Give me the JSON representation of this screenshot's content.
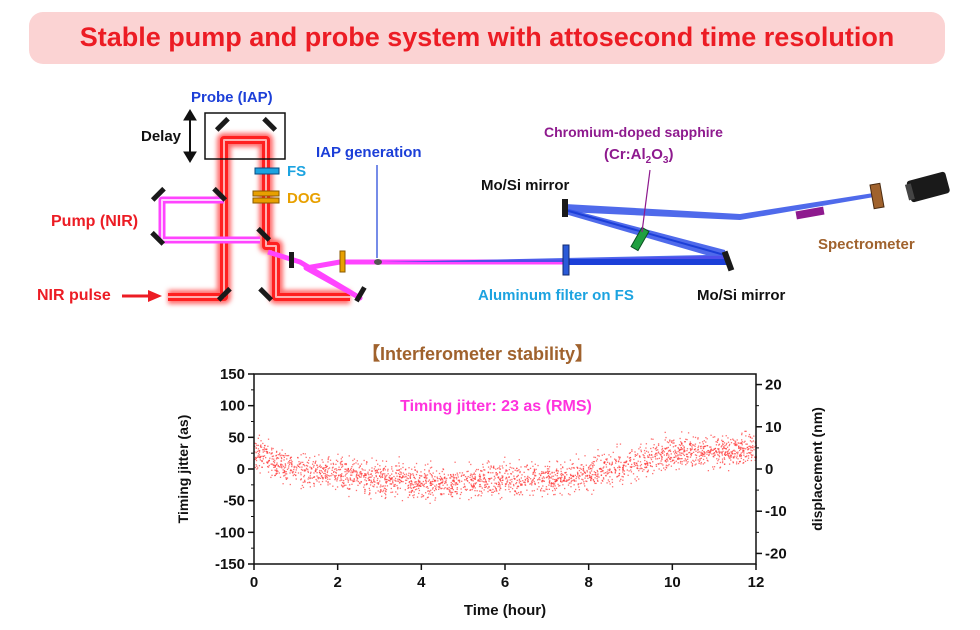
{
  "title": "Stable pump and probe system with attosecond time resolution",
  "diagram": {
    "probe_label": "Probe (IAP)",
    "delay_label": "Delay",
    "fs_label": "FS",
    "dog_label": "DOG",
    "pump_label": "Pump (NIR)",
    "nir_pulse_label": "NIR pulse",
    "iap_generation_label": "IAP generation",
    "chromium_label": "Chromium-doped sapphire",
    "cr_formula": {
      "pre": "(Cr:Al",
      "sub1": "2",
      "mid": "O",
      "sub2": "3",
      "post": ")"
    },
    "mosi_mirror_top": "Mo/Si mirror",
    "mosi_mirror_bottom": "Mo/Si mirror",
    "aluminum_filter_label": "Aluminum filter on FS",
    "spectrometer_label": "Spectrometer",
    "colors": {
      "nir": "#ec1c24",
      "pump": "#ff44ff",
      "probe": "#1c3fd8",
      "fs": "#1ca3e0",
      "dog": "#e8a000",
      "chromium": "#8e1a8e",
      "spectrometer": "#a0622d"
    }
  },
  "chart_data": {
    "type": "scatter",
    "title": "【Interferometer stability】",
    "annotation": "Timing jitter: 23 as (RMS)",
    "xlabel": "Time (hour)",
    "ylabel": "Timing jitter (as)",
    "y2label": "displacement (nm)",
    "xlim": [
      0,
      12
    ],
    "ylim": [
      -150,
      150
    ],
    "y2lim": [
      -22.5,
      22.5
    ],
    "x_ticks": [
      "0",
      "2",
      "4",
      "6",
      "8",
      "10",
      "12"
    ],
    "y_ticks": [
      "-150",
      "-100",
      "-50",
      "0",
      "50",
      "100",
      "150"
    ],
    "y2_ticks": [
      "-20",
      "-10",
      "0",
      "10",
      "20"
    ],
    "color": "#ff3333",
    "rms": 23,
    "trend": {
      "x": [
        0,
        0.5,
        1,
        2,
        3,
        4,
        5,
        6,
        7,
        8,
        9,
        10,
        11,
        12
      ],
      "y": [
        30,
        10,
        0,
        -8,
        -14,
        -20,
        -20,
        -16,
        -14,
        -8,
        10,
        28,
        30,
        32
      ]
    }
  }
}
